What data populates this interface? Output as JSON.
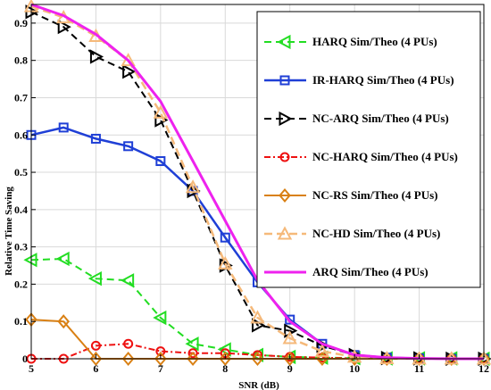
{
  "chart_data": {
    "type": "line",
    "xlabel": "SNR (dB)",
    "ylabel": "Relative Time Saving",
    "xlim": [
      5,
      12
    ],
    "ylim": [
      0,
      0.95
    ],
    "xticks": [
      5,
      6,
      7,
      8,
      9,
      10,
      11,
      12
    ],
    "yticks": [
      0,
      0.1,
      0.2,
      0.3,
      0.4,
      0.5,
      0.6,
      0.7,
      0.8,
      0.9
    ],
    "grid": true,
    "legend_position": "right",
    "series": [
      {
        "name": "HARQ Sim/Theo (4 PUs)",
        "color": "#22dd22",
        "dash": "8 5",
        "marker": "triangle-left",
        "line_width": 2,
        "x": [
          5,
          5.5,
          6,
          6.5,
          7,
          7.5,
          8,
          8.5,
          9,
          9.5,
          10,
          10.5,
          11,
          11.5,
          12
        ],
        "y": [
          0.265,
          0.268,
          0.215,
          0.21,
          0.11,
          0.04,
          0.025,
          0.01,
          0.005,
          0.003,
          0.002,
          0.001,
          0.001,
          0.001,
          0.0
        ]
      },
      {
        "name": "IR-HARQ Sim/Theo (4 PUs)",
        "color": "#1f3fd6",
        "dash": "",
        "marker": "square",
        "line_width": 2.5,
        "x": [
          5,
          5.5,
          6,
          6.5,
          7,
          7.5,
          8,
          8.5,
          9,
          9.5,
          10,
          10.5,
          11,
          11.5,
          12
        ],
        "y": [
          0.6,
          0.62,
          0.59,
          0.57,
          0.53,
          0.45,
          0.325,
          0.205,
          0.105,
          0.04,
          0.01,
          0.003,
          0.001,
          0.0,
          0.0
        ]
      },
      {
        "name": "NC-ARQ Sim/Theo (4 PUs)",
        "color": "#000000",
        "dash": "8 5",
        "marker": "triangle-right",
        "line_width": 2,
        "x": [
          5,
          5.5,
          6,
          6.5,
          7,
          7.5,
          8,
          8.5,
          9,
          9.5,
          10,
          10.5,
          11,
          11.5,
          12
        ],
        "y": [
          0.93,
          0.89,
          0.81,
          0.77,
          0.64,
          0.45,
          0.25,
          0.09,
          0.075,
          0.035,
          0.01,
          0.002,
          0.001,
          0.0,
          0.0
        ]
      },
      {
        "name": "NC-HARQ Sim/Theo (4 PUs)",
        "color": "#ee1111",
        "dash": "7 3 2 3",
        "marker": "circle",
        "line_width": 2,
        "x": [
          5,
          5.5,
          6,
          6.5,
          7,
          7.5,
          8,
          8.5,
          9,
          9.5,
          10,
          10.5,
          11,
          11.5,
          12
        ],
        "y": [
          0.0,
          0.0,
          0.035,
          0.04,
          0.02,
          0.015,
          0.015,
          0.01,
          0.005,
          0.003,
          0.001,
          0.0,
          0.0,
          0.0,
          0.0
        ]
      },
      {
        "name": "NC-RS Sim/Theo (4 PUs)",
        "color": "#d98014",
        "dash": "",
        "marker": "diamond",
        "line_width": 2,
        "x": [
          5,
          5.5,
          6,
          6.5,
          7,
          7.5,
          8,
          8.5,
          9,
          9.5,
          10,
          10.5,
          11,
          11.5,
          12
        ],
        "y": [
          0.105,
          0.1,
          0.0,
          0.0,
          0.0,
          0.0,
          0.0,
          0.0,
          0.0,
          0.0,
          0.0,
          0.0,
          0.0,
          0.0,
          0.0
        ]
      },
      {
        "name": "NC-HD Sim/Theo (4 PUs)",
        "color": "#f5b97a",
        "dash": "9 5",
        "marker": "triangle-up",
        "line_width": 2.5,
        "x": [
          5,
          5.5,
          6,
          6.5,
          7,
          7.5,
          8,
          8.5,
          9,
          9.5,
          10,
          10.5,
          11,
          11.5,
          12
        ],
        "y": [
          0.945,
          0.915,
          0.865,
          0.8,
          0.66,
          0.46,
          0.255,
          0.11,
          0.055,
          0.02,
          0.005,
          0.001,
          0.0,
          0.0,
          0.0
        ]
      },
      {
        "name": "ARQ Sim/Theo (4 PUs)",
        "color": "#ee22ee",
        "dash": "",
        "marker": "none",
        "line_width": 3,
        "x": [
          5,
          5.5,
          6,
          6.5,
          7,
          7.5,
          8,
          8.5,
          9,
          9.5,
          10,
          10.5,
          11,
          11.5,
          12
        ],
        "y": [
          0.95,
          0.92,
          0.87,
          0.8,
          0.69,
          0.53,
          0.37,
          0.21,
          0.1,
          0.04,
          0.01,
          0.003,
          0.001,
          0.0,
          0.0
        ]
      }
    ]
  }
}
